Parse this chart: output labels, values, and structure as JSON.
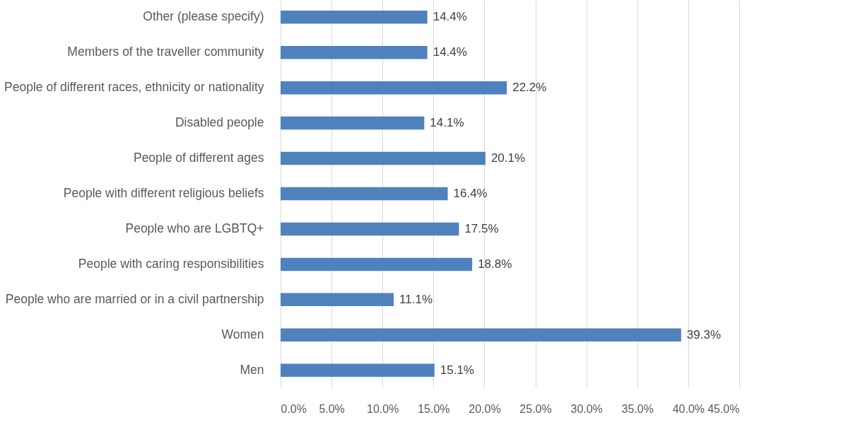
{
  "chart_data": {
    "type": "bar",
    "orientation": "horizontal",
    "categories": [
      "Other (please specify)",
      "Members of the traveller community",
      "People of different races, ethnicity or nationality",
      "Disabled people",
      "People of different ages",
      "People with different religious beliefs",
      "People who are LGBTQ+",
      "People with caring responsibilities",
      "People who are married or in a civil partnership",
      "Women",
      "Men"
    ],
    "values": [
      14.4,
      14.4,
      22.2,
      14.1,
      20.1,
      16.4,
      17.5,
      18.8,
      11.1,
      39.3,
      15.1
    ],
    "value_labels": [
      "14.4%",
      "14.4%",
      "22.2%",
      "14.1%",
      "20.1%",
      "16.4%",
      "17.5%",
      "18.8%",
      "11.1%",
      "39.3%",
      "15.1%"
    ],
    "color": "#4f81bd",
    "xlim": [
      0,
      45
    ],
    "xticks": [
      {
        "value": 0,
        "label": "0.0%"
      },
      {
        "value": 5,
        "label": "5.0%"
      },
      {
        "value": 10,
        "label": "10.0%"
      },
      {
        "value": 15,
        "label": "15.0%"
      },
      {
        "value": 20,
        "label": "20.0%"
      },
      {
        "value": 25,
        "label": "25.0%"
      },
      {
        "value": 30,
        "label": "30.0%"
      },
      {
        "value": 35,
        "label": "35.0%"
      },
      {
        "value": 40,
        "label": "40.0%"
      },
      {
        "value": 45,
        "label": "45.0%"
      }
    ],
    "grid": "x"
  }
}
